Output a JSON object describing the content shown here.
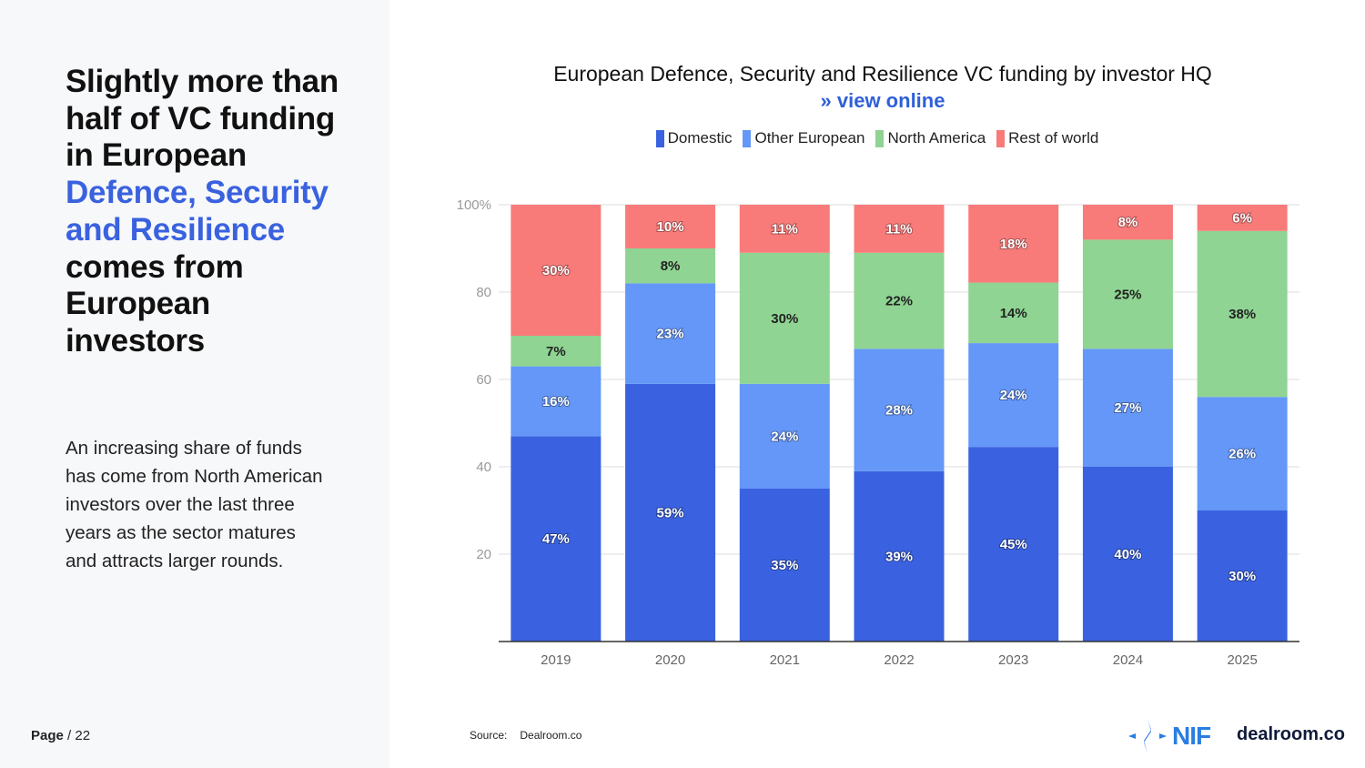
{
  "sidebar": {
    "headline_parts": [
      "Slightly more than half of VC funding in European ",
      "Defence, Security and Resilience",
      " comes from European investors"
    ],
    "body": "An increasing share of funds has come from North American investors over the last three years as the sector matures and attracts larger rounds.",
    "page_label": "Page",
    "page_total": "/ 22"
  },
  "chart_data": {
    "type": "bar",
    "stacked": true,
    "title": "European Defence, Security and Resilience VC funding by investor HQ",
    "link": "» view online",
    "categories": [
      "2019",
      "2020",
      "2021",
      "2022",
      "2023",
      "2024",
      "2025"
    ],
    "series": [
      {
        "name": "Domestic",
        "color": "#3a62e0",
        "label_color": "#ffffff",
        "values": [
          47,
          59,
          35,
          39,
          45,
          40,
          30
        ]
      },
      {
        "name": "Other European",
        "color": "#6497f8",
        "label_color": "#ffffff",
        "values": [
          16,
          23,
          24,
          28,
          24,
          27,
          26
        ]
      },
      {
        "name": "North America",
        "color": "#8fd492",
        "label_color": "#222222",
        "values": [
          7,
          8,
          30,
          22,
          14,
          25,
          38
        ]
      },
      {
        "name": "Rest of world",
        "color": "#f87b7a",
        "label_color": "#ffffff",
        "values": [
          30,
          10,
          11,
          11,
          18,
          8,
          6
        ]
      }
    ],
    "yticks": [
      "20",
      "40",
      "60",
      "80",
      "100%"
    ],
    "ylim": [
      0,
      100
    ],
    "grid": true,
    "legend": "top-center"
  },
  "footer": {
    "source_label": "Source:",
    "source": "Dealroom.co",
    "logo_nif": "NIF",
    "logo_dealroom": "dealroom.co"
  }
}
